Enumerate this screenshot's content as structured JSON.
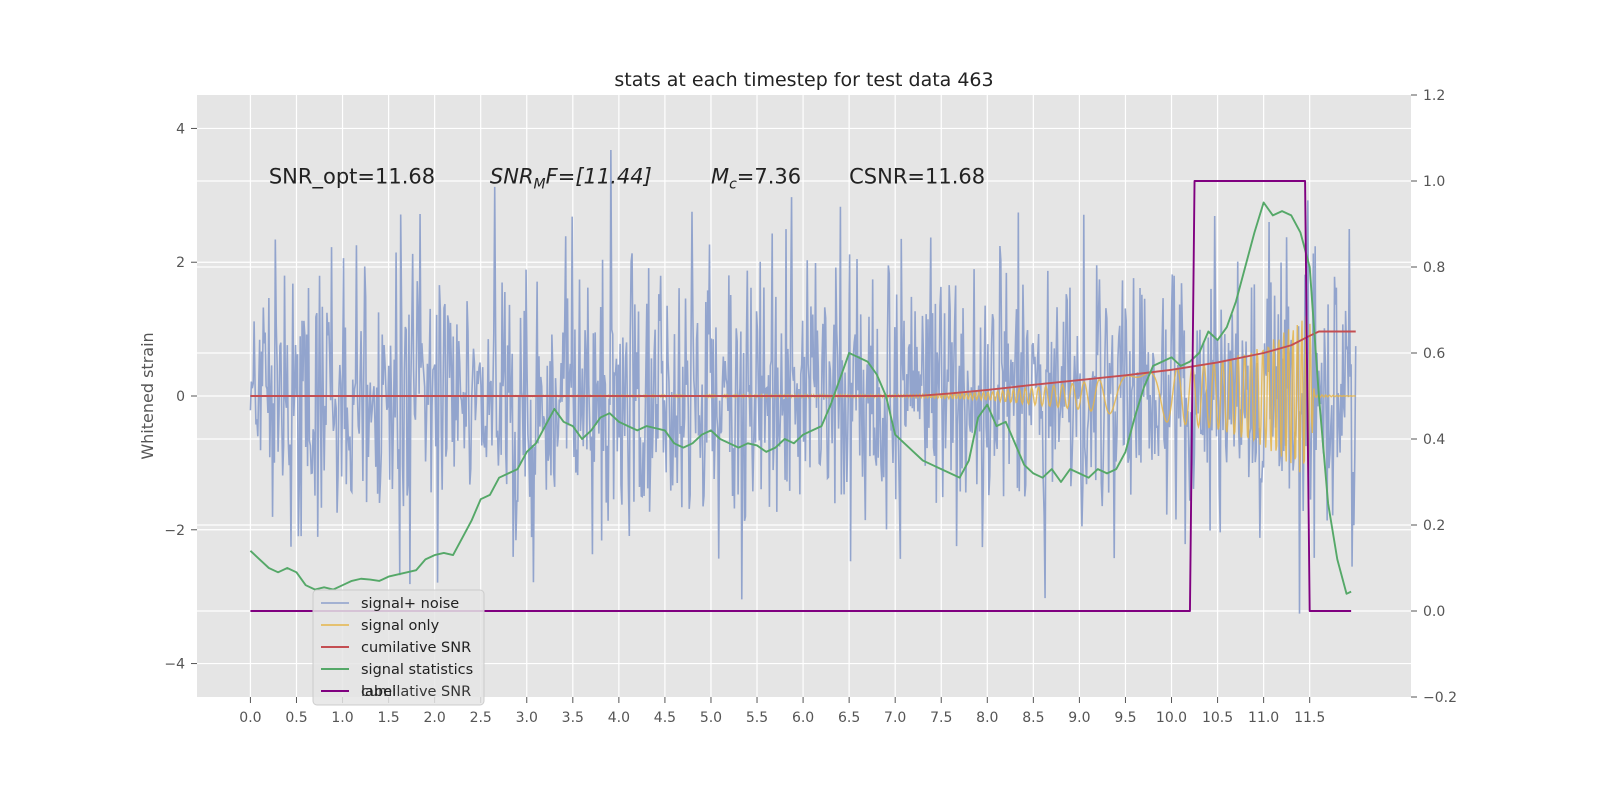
{
  "chart_data": {
    "type": "line",
    "title": "stats at each timestep for test data 463",
    "ylabel": "Whitened strain",
    "xlim": [
      -0.58,
      12.6
    ],
    "ylim": [
      -4.5,
      4.5
    ],
    "y2lim": [
      -0.2,
      1.2
    ],
    "x_ticks": [
      0.0,
      0.5,
      1.0,
      1.5,
      2.0,
      2.5,
      3.0,
      3.5,
      4.0,
      4.5,
      5.0,
      5.5,
      6.0,
      6.5,
      7.0,
      7.5,
      8.0,
      8.5,
      9.0,
      9.5,
      10.0,
      10.5,
      11.0,
      11.5
    ],
    "x_tick_labels": [
      "0.0",
      "0.5",
      "1.0",
      "1.5",
      "2.0",
      "2.5",
      "3.0",
      "3.5",
      "4.0",
      "4.5",
      "5.0",
      "5.5",
      "6.0",
      "6.5",
      "7.0",
      "7.5",
      "8.0",
      "8.5",
      "9.0",
      "9.5",
      "10.0",
      "10.5",
      "11.0",
      "11.5"
    ],
    "y_ticks": [
      -4,
      -2,
      0,
      2,
      4
    ],
    "y_tick_labels": [
      "−4",
      "−2",
      "0",
      "2",
      "4"
    ],
    "y2_ticks": [
      -0.2,
      0.0,
      0.2,
      0.4,
      0.6,
      0.8,
      1.0,
      1.2
    ],
    "y2_tick_labels": [
      "−0.2",
      "0.0",
      "0.2",
      "0.4",
      "0.6",
      "0.8",
      "1.0",
      "1.2"
    ],
    "grid": true,
    "legend_position": "lower-left",
    "annotations": [
      {
        "id": "snr-opt",
        "x": 0.2,
        "y": 3.3,
        "text": "SNR_opt=11.68"
      },
      {
        "id": "snr-mf",
        "x": 2.6,
        "y": 3.3,
        "prefix": "SNR",
        "subscript": "M",
        "suffix": "F=[11.44]"
      },
      {
        "id": "mc",
        "x": 5.0,
        "y": 3.3,
        "prefix": "M",
        "subscript": "c",
        "suffix": "=7.36"
      },
      {
        "id": "csnr",
        "x": 6.5,
        "y": 3.3,
        "text": "CSNR=11.68"
      }
    ],
    "series": [
      {
        "name": "signal+ noise",
        "axis": "left",
        "color": "#8da0cb",
        "kind": "noise",
        "x_range": [
          0.0,
          12.0
        ],
        "samples": 1200,
        "sigma": 1.0,
        "envelope_max": [
          [
            0.0,
            2.3
          ],
          [
            3.0,
            2.7
          ],
          [
            6.5,
            3.0
          ],
          [
            9.0,
            2.7
          ],
          [
            11.0,
            3.3
          ],
          [
            12.0,
            2.2
          ]
        ]
      },
      {
        "name": "signal only",
        "axis": "left",
        "color": "#e5b54a",
        "kind": "chirp",
        "x_range": [
          0.0,
          12.0
        ],
        "amplitude_envelope": [
          [
            0.0,
            0.0
          ],
          [
            7.2,
            0.02
          ],
          [
            8.0,
            0.06
          ],
          [
            9.0,
            0.2
          ],
          [
            10.0,
            0.4
          ],
          [
            10.5,
            0.5
          ],
          [
            11.0,
            0.75
          ],
          [
            11.5,
            1.25
          ],
          [
            11.55,
            0.02
          ],
          [
            12.0,
            0.0
          ]
        ]
      },
      {
        "name": "cumilative SNR",
        "axis": "right",
        "color": "#c44e52",
        "x": [
          0.0,
          7.0,
          7.3,
          7.6,
          8.0,
          8.5,
          9.0,
          9.5,
          10.0,
          10.5,
          11.0,
          11.3,
          11.5,
          11.6,
          12.0
        ],
        "y": [
          0.5,
          0.5,
          0.501,
          0.506,
          0.514,
          0.526,
          0.537,
          0.548,
          0.561,
          0.578,
          0.6,
          0.618,
          0.64,
          0.65,
          0.65
        ]
      },
      {
        "name": "signal statistics",
        "axis": "right",
        "color": "#55a868",
        "x": [
          0.0,
          0.1,
          0.2,
          0.3,
          0.4,
          0.5,
          0.6,
          0.7,
          0.8,
          0.9,
          1.0,
          1.1,
          1.2,
          1.3,
          1.4,
          1.5,
          1.6,
          1.7,
          1.8,
          1.9,
          2.0,
          2.1,
          2.2,
          2.3,
          2.4,
          2.5,
          2.6,
          2.7,
          2.8,
          2.9,
          3.0,
          3.1,
          3.2,
          3.3,
          3.4,
          3.5,
          3.6,
          3.7,
          3.8,
          3.9,
          4.0,
          4.1,
          4.2,
          4.3,
          4.4,
          4.5,
          4.6,
          4.7,
          4.8,
          4.9,
          5.0,
          5.1,
          5.2,
          5.3,
          5.4,
          5.5,
          5.6,
          5.7,
          5.8,
          5.9,
          6.0,
          6.1,
          6.2,
          6.3,
          6.4,
          6.5,
          6.6,
          6.7,
          6.8,
          6.9,
          7.0,
          7.1,
          7.2,
          7.3,
          7.4,
          7.5,
          7.6,
          7.7,
          7.8,
          7.9,
          8.0,
          8.1,
          8.2,
          8.3,
          8.4,
          8.5,
          8.6,
          8.7,
          8.8,
          8.9,
          9.0,
          9.1,
          9.2,
          9.3,
          9.4,
          9.5,
          9.6,
          9.7,
          9.8,
          9.9,
          10.0,
          10.1,
          10.2,
          10.3,
          10.4,
          10.5,
          10.6,
          10.7,
          10.8,
          10.9,
          11.0,
          11.1,
          11.2,
          11.3,
          11.4,
          11.5,
          11.6,
          11.7,
          11.8,
          11.9
        ],
        "y": [
          0.14,
          0.12,
          0.1,
          0.09,
          0.1,
          0.09,
          0.06,
          0.05,
          0.055,
          0.05,
          0.06,
          0.07,
          0.075,
          0.073,
          0.07,
          0.08,
          0.085,
          0.09,
          0.095,
          0.12,
          0.13,
          0.135,
          0.13,
          0.17,
          0.21,
          0.26,
          0.27,
          0.31,
          0.32,
          0.33,
          0.37,
          0.39,
          0.43,
          0.47,
          0.44,
          0.43,
          0.4,
          0.42,
          0.45,
          0.46,
          0.44,
          0.43,
          0.42,
          0.43,
          0.425,
          0.42,
          0.39,
          0.38,
          0.39,
          0.41,
          0.42,
          0.4,
          0.39,
          0.38,
          0.39,
          0.385,
          0.37,
          0.38,
          0.4,
          0.39,
          0.41,
          0.42,
          0.43,
          0.48,
          0.54,
          0.6,
          0.59,
          0.58,
          0.55,
          0.5,
          0.41,
          0.39,
          0.37,
          0.35,
          0.34,
          0.33,
          0.32,
          0.31,
          0.35,
          0.45,
          0.48,
          0.43,
          0.44,
          0.39,
          0.34,
          0.32,
          0.31,
          0.33,
          0.3,
          0.33,
          0.32,
          0.31,
          0.33,
          0.32,
          0.33,
          0.37,
          0.45,
          0.52,
          0.57,
          0.58,
          0.59,
          0.57,
          0.58,
          0.6,
          0.65,
          0.63,
          0.66,
          0.72,
          0.8,
          0.88,
          0.95,
          0.92,
          0.93,
          0.92,
          0.88,
          0.8,
          0.5,
          0.25,
          0.12,
          0.04
        ],
        "y_tail": [
          [
            11.95,
            0.045
          ]
        ]
      },
      {
        "name": "label",
        "axis": "right",
        "color": "#800080",
        "x": [
          0.0,
          10.2,
          10.25,
          11.45,
          11.5,
          11.95
        ],
        "y": [
          0.0,
          0.0,
          1.0,
          1.0,
          0.0,
          0.0
        ]
      }
    ],
    "legend_entries": [
      "signal+ noise",
      "signal only",
      "cumilative SNR",
      "signal statistics",
      "label"
    ],
    "legend_ghost_text": "cumilative SNR"
  }
}
